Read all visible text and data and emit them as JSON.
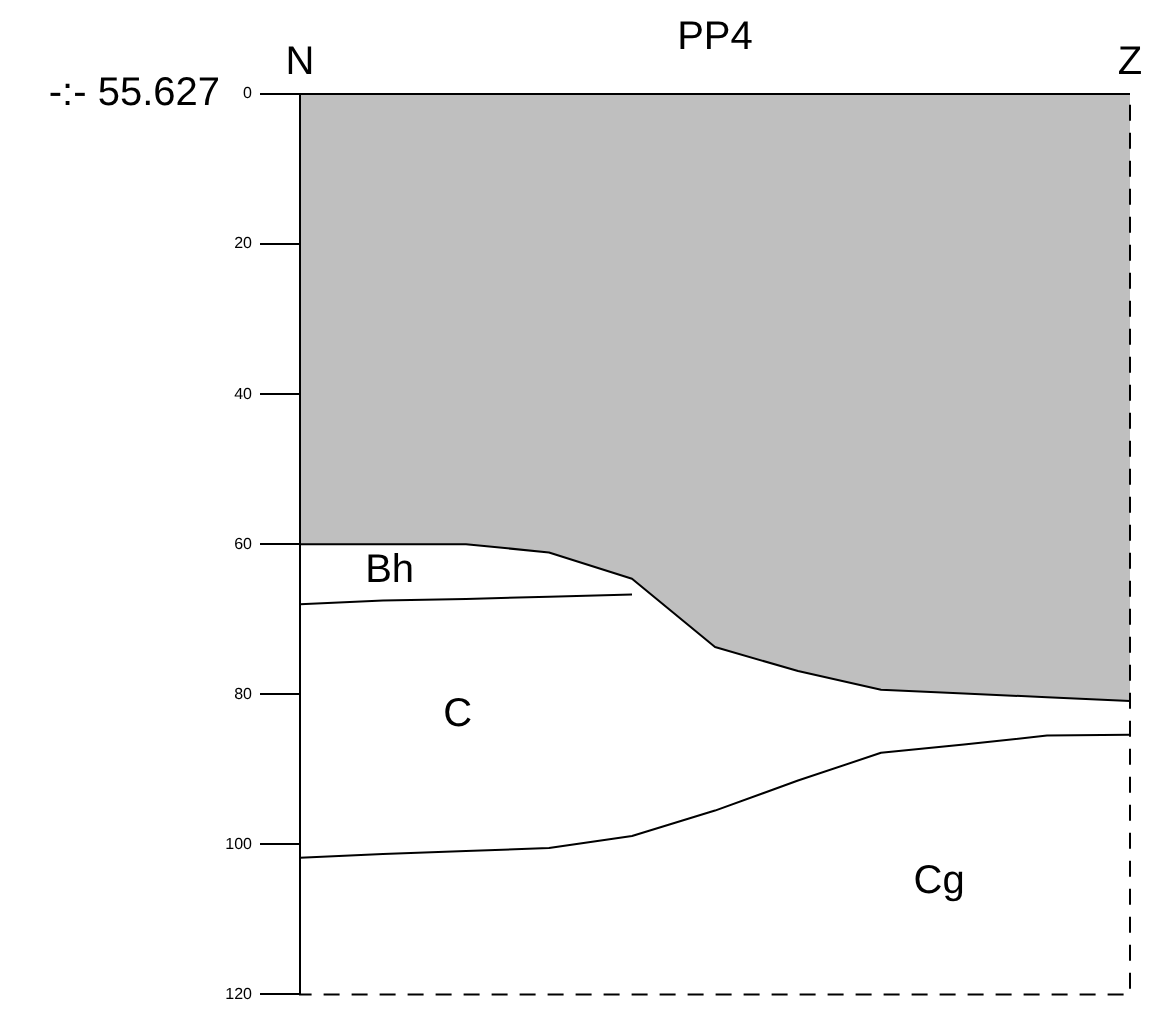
{
  "chart_data": {
    "type": "line",
    "title": "PP4",
    "categories": [
      null,
      null,
      null,
      null,
      null,
      null,
      null,
      null,
      null,
      null,
      null
    ],
    "series": [
      {
        "type": "area",
        "color": "#000000",
        "values": [
          60,
          60,
          60,
          61.1,
          64.6,
          73.7,
          76.9,
          79.4,
          79.9,
          80.4,
          80.9
        ]
      },
      {
        "type": "line",
        "color": "#000000",
        "values": [
          68,
          67.5,
          67.3,
          67,
          66.7,
          null,
          null,
          null,
          null,
          null,
          null
        ]
      },
      {
        "type": "line",
        "color": "#000000",
        "values": [
          101.8,
          101.3,
          100.9,
          100.5,
          98.9,
          95.5,
          91.5,
          87.8,
          86.7,
          85.5,
          85.4
        ]
      }
    ],
    "ylim": [
      120,
      0
    ],
    "yticks": [
      0,
      20,
      40,
      60,
      80,
      100,
      120
    ],
    "grid": false,
    "legend": false,
    "marker": "none",
    "line_style": "solid",
    "annotations": [
      "-:- 55.627",
      "N",
      "Z",
      "Bh",
      "C",
      "Cg"
    ]
  }
}
